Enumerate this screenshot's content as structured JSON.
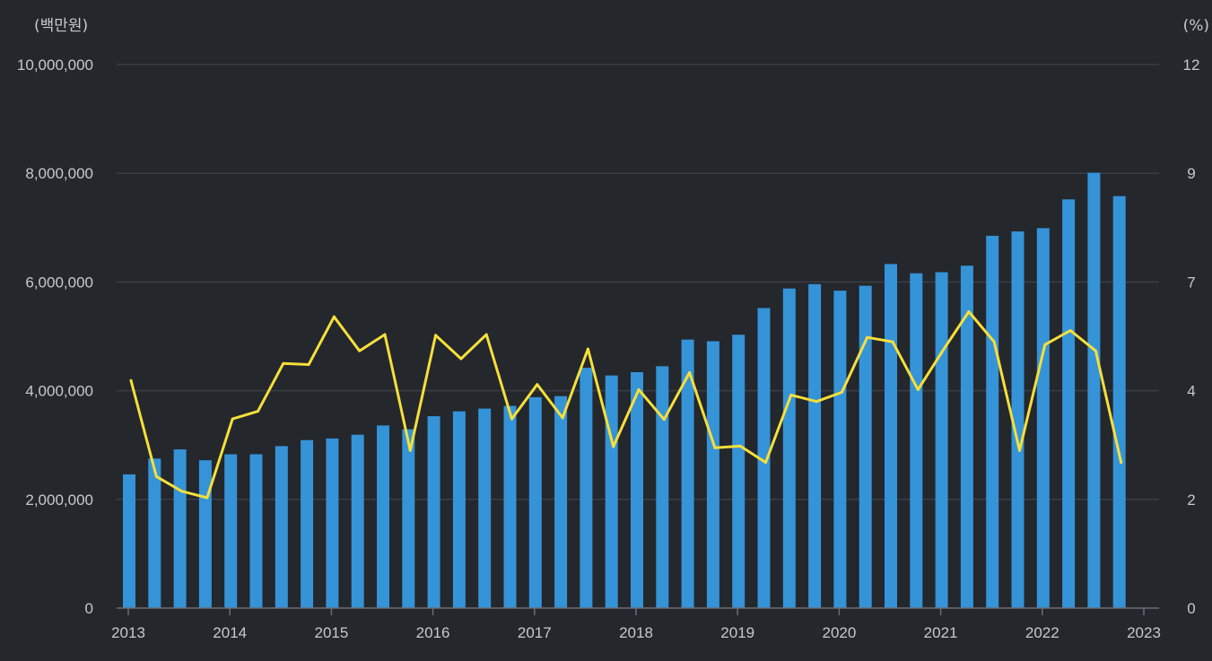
{
  "chart_data": {
    "type": "bar+line",
    "title": "",
    "left_unit_label": "(백만원)",
    "right_unit_label": "(%)",
    "left_axis": {
      "min": 0,
      "max": 10000000,
      "ticks": [
        0,
        2000000,
        4000000,
        6000000,
        8000000,
        10000000
      ],
      "tick_labels": [
        "0",
        "2,000,000",
        "4,000,000",
        "6,000,000",
        "8,000,000",
        "10,000,000"
      ]
    },
    "right_axis": {
      "ticks": [
        0,
        2,
        4,
        7,
        9,
        12
      ],
      "tick_labels": [
        "0",
        "2",
        "4",
        "7",
        "9",
        "12"
      ]
    },
    "x_axis": {
      "min": 2013,
      "max": 2023,
      "tick_labels": [
        "2013",
        "2014",
        "2015",
        "2016",
        "2017",
        "2018",
        "2019",
        "2020",
        "2021",
        "2022",
        "2023"
      ]
    },
    "grid": true,
    "colors": {
      "bar": "#3593d8",
      "line": "#f6df3a",
      "background": "#24272c",
      "grid": "#3a3e45",
      "text": "#c7c9cc"
    },
    "series": [
      {
        "name": "bar-series",
        "type": "bar",
        "axis": "left",
        "x": [
          2013.0,
          2013.25,
          2013.5,
          2013.75,
          2014.0,
          2014.25,
          2014.5,
          2014.75,
          2015.0,
          2015.25,
          2015.5,
          2015.75,
          2016.0,
          2016.25,
          2016.5,
          2016.75,
          2017.0,
          2017.25,
          2017.5,
          2017.75,
          2018.0,
          2018.25,
          2018.5,
          2018.75,
          2019.0,
          2019.25,
          2019.5,
          2019.75,
          2020.0,
          2020.25,
          2020.5,
          2020.75,
          2021.0,
          2021.25,
          2021.5,
          2021.75,
          2022.0,
          2022.25,
          2022.5,
          2022.75
        ],
        "values": [
          2460000,
          2750000,
          2920000,
          2720000,
          2830000,
          2830000,
          2980000,
          3090000,
          3120000,
          3190000,
          3360000,
          3290000,
          3530000,
          3620000,
          3670000,
          3720000,
          3880000,
          3900000,
          4420000,
          4280000,
          4340000,
          4450000,
          4940000,
          4910000,
          5030000,
          5520000,
          5880000,
          5960000,
          5840000,
          5930000,
          6330000,
          6160000,
          6180000,
          6300000,
          6850000,
          6930000,
          6990000,
          7520000,
          8010000,
          7580000
        ]
      },
      {
        "name": "line-series",
        "type": "line",
        "axis": "right",
        "x": [
          2013.0,
          2013.25,
          2013.5,
          2013.75,
          2014.0,
          2014.25,
          2014.5,
          2014.75,
          2015.0,
          2015.25,
          2015.5,
          2015.75,
          2016.0,
          2016.25,
          2016.5,
          2016.75,
          2017.0,
          2017.25,
          2017.5,
          2017.75,
          2018.0,
          2018.25,
          2018.5,
          2018.75,
          2019.0,
          2019.25,
          2019.5,
          2019.75,
          2020.0,
          2020.25,
          2020.5,
          2020.75,
          2021.0,
          2021.25,
          2021.5,
          2021.75,
          2022.0,
          2022.25,
          2022.5,
          2022.75
        ],
        "values": [
          4.28,
          2.42,
          2.15,
          2.03,
          3.48,
          3.62,
          4.75,
          4.72,
          6.04,
          5.1,
          5.55,
          2.9,
          5.53,
          4.88,
          5.55,
          3.48,
          4.17,
          3.5,
          5.15,
          2.97,
          4.03,
          3.47,
          4.5,
          2.95,
          2.98,
          2.68,
          3.92,
          3.8,
          3.97,
          5.47,
          5.35,
          4.03,
          5.13,
          6.18,
          5.35,
          2.9,
          5.27,
          5.66,
          5.1,
          2.68
        ]
      }
    ]
  }
}
